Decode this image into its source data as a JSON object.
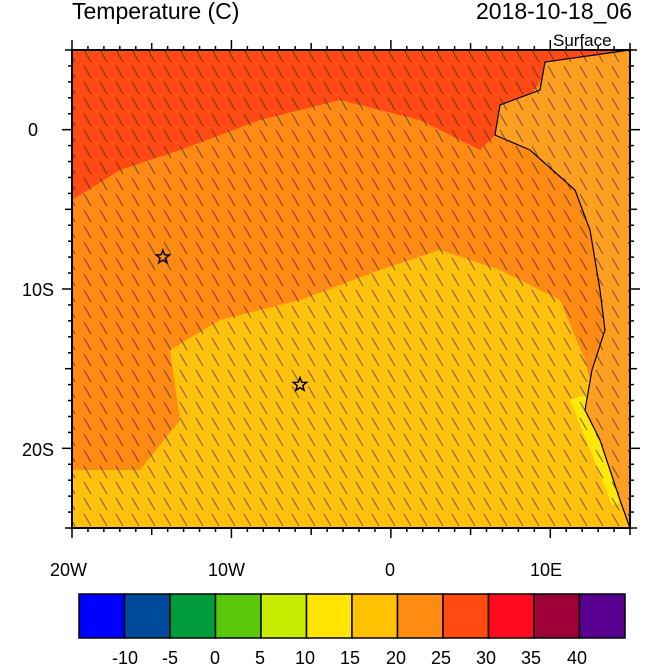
{
  "header": {
    "title": "Temperature (C)",
    "datetime": "2018-10-18_06",
    "level": "Surface"
  },
  "map": {
    "region": "Southeast Atlantic / West Africa coast",
    "lon_range": [
      -20,
      15
    ],
    "lat_range": [
      -25,
      5
    ],
    "x_ticks": [
      "20W",
      "10W",
      "0",
      "10E"
    ],
    "y_ticks": [
      "0",
      "10S",
      "20S"
    ],
    "station_markers": [
      {
        "lon": -14.3,
        "lat": -8.0,
        "symbol": "star"
      },
      {
        "lon": -5.7,
        "lat": -16.0,
        "symbol": "star"
      }
    ],
    "field_colors": {
      "hot": "#ff4a14",
      "warm": "#ff8a14",
      "mild": "#ffc10d",
      "cool": "#ffe80a"
    },
    "wind_barbs": "shown"
  },
  "colorbar": {
    "labels": [
      "-10",
      "-5",
      "0",
      "5",
      "10",
      "15",
      "20",
      "25",
      "30",
      "35",
      "40"
    ],
    "colors": [
      "#0000ff",
      "#004a9c",
      "#009c3b",
      "#5ac80a",
      "#c8ec00",
      "#ffe600",
      "#ffc100",
      "#ff8c10",
      "#ff4a10",
      "#ff0a1e",
      "#a0003a",
      "#5a0090"
    ]
  }
}
